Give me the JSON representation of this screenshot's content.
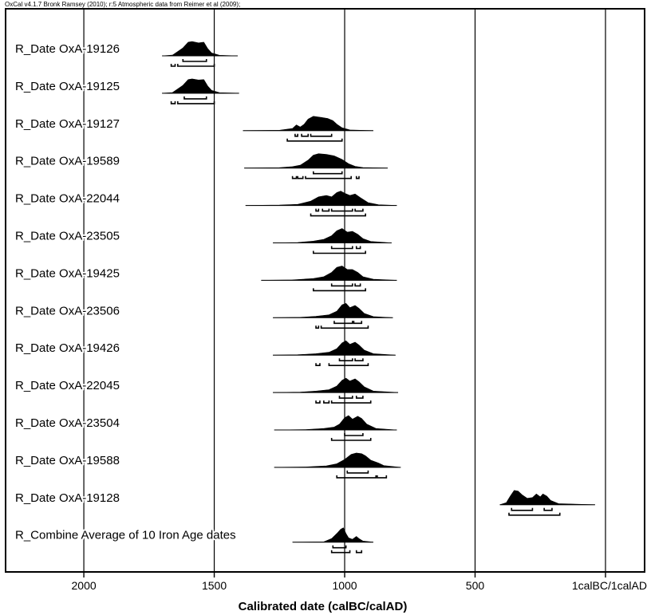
{
  "header": "OxCal v4.1.7 Bronk Ramsey (2010); r:5 Atmospheric data from Reimer et al (2009);",
  "chart_data": {
    "type": "scatter",
    "title": "",
    "xlabel": "Calibrated date (calBC/calAD)",
    "ylabel": "",
    "xlim": [
      2300,
      -150
    ],
    "grid": true,
    "tick_values": [
      2000,
      1500,
      1000,
      500,
      0
    ],
    "tick_labels": [
      "2000",
      "1500",
      "1000",
      "500",
      "1calBC/1calAD"
    ],
    "series": [
      {
        "name": "R_Date OxA-19126",
        "x_range": [
          1700,
          1410
        ],
        "mode": 1590,
        "shape": [
          [
            1700,
            0
          ],
          [
            1660,
            0.05
          ],
          [
            1640,
            0.3
          ],
          [
            1620,
            0.55
          ],
          [
            1600,
            0.95
          ],
          [
            1585,
            1
          ],
          [
            1560,
            0.9
          ],
          [
            1540,
            0.95
          ],
          [
            1525,
            0.5
          ],
          [
            1510,
            0.2
          ],
          [
            1480,
            0.04
          ],
          [
            1410,
            0
          ]
        ],
        "ranges68": [
          [
            1620,
            1530
          ]
        ],
        "ranges95": [
          [
            1665,
            1650
          ],
          [
            1640,
            1500
          ]
        ]
      },
      {
        "name": "R_Date OxA-19125",
        "x_range": [
          1700,
          1405
        ],
        "mode": 1590,
        "shape": [
          [
            1700,
            0
          ],
          [
            1660,
            0.05
          ],
          [
            1640,
            0.3
          ],
          [
            1620,
            0.55
          ],
          [
            1600,
            0.95
          ],
          [
            1585,
            1
          ],
          [
            1560,
            0.92
          ],
          [
            1540,
            0.95
          ],
          [
            1525,
            0.5
          ],
          [
            1510,
            0.2
          ],
          [
            1480,
            0.04
          ],
          [
            1405,
            0
          ]
        ],
        "ranges68": [
          [
            1615,
            1530
          ]
        ],
        "ranges95": [
          [
            1665,
            1650
          ],
          [
            1640,
            1500
          ]
        ]
      },
      {
        "name": "R_Date OxA-19127",
        "x_range": [
          1390,
          890
        ],
        "mode": 1110,
        "shape": [
          [
            1390,
            0
          ],
          [
            1250,
            0.03
          ],
          [
            1200,
            0.15
          ],
          [
            1185,
            0.4
          ],
          [
            1170,
            0.25
          ],
          [
            1155,
            0.45
          ],
          [
            1140,
            0.8
          ],
          [
            1120,
            1
          ],
          [
            1090,
            0.92
          ],
          [
            1065,
            0.85
          ],
          [
            1045,
            0.7
          ],
          [
            1030,
            0.45
          ],
          [
            1010,
            0.2
          ],
          [
            980,
            0.05
          ],
          [
            890,
            0
          ]
        ],
        "ranges68": [
          [
            1190,
            1180
          ],
          [
            1165,
            1140
          ],
          [
            1130,
            1050
          ]
        ],
        "ranges95": [
          [
            1220,
            1010
          ]
        ]
      },
      {
        "name": "R_Date OxA-19589",
        "x_range": [
          1385,
          835
        ],
        "mode": 1100,
        "shape": [
          [
            1385,
            0
          ],
          [
            1250,
            0.03
          ],
          [
            1200,
            0.1
          ],
          [
            1170,
            0.2
          ],
          [
            1140,
            0.55
          ],
          [
            1120,
            0.9
          ],
          [
            1100,
            1
          ],
          [
            1070,
            0.95
          ],
          [
            1040,
            0.85
          ],
          [
            1010,
            0.6
          ],
          [
            985,
            0.3
          ],
          [
            960,
            0.12
          ],
          [
            930,
            0.04
          ],
          [
            835,
            0
          ]
        ],
        "ranges68": [
          [
            1120,
            1010
          ]
        ],
        "ranges95": [
          [
            1200,
            1185
          ],
          [
            1180,
            1160
          ],
          [
            1150,
            975
          ],
          [
            955,
            945
          ]
        ]
      },
      {
        "name": "R_Date OxA-22044",
        "x_range": [
          1380,
          800
        ],
        "mode": 1020,
        "shape": [
          [
            1380,
            0
          ],
          [
            1250,
            0.03
          ],
          [
            1180,
            0.08
          ],
          [
            1130,
            0.3
          ],
          [
            1100,
            0.6
          ],
          [
            1070,
            0.7
          ],
          [
            1050,
            0.6
          ],
          [
            1030,
            0.9
          ],
          [
            1015,
            1
          ],
          [
            1000,
            0.85
          ],
          [
            980,
            0.7
          ],
          [
            960,
            0.8
          ],
          [
            940,
            0.55
          ],
          [
            910,
            0.2
          ],
          [
            870,
            0.05
          ],
          [
            800,
            0
          ]
        ],
        "ranges68": [
          [
            1110,
            1100
          ],
          [
            1085,
            1060
          ],
          [
            1050,
            970
          ],
          [
            960,
            930
          ]
        ],
        "ranges95": [
          [
            1130,
            920
          ]
        ]
      },
      {
        "name": "R_Date OxA-23505",
        "x_range": [
          1275,
          820
        ],
        "mode": 1010,
        "shape": [
          [
            1275,
            0
          ],
          [
            1180,
            0.03
          ],
          [
            1120,
            0.12
          ],
          [
            1080,
            0.25
          ],
          [
            1050,
            0.5
          ],
          [
            1030,
            0.85
          ],
          [
            1010,
            1
          ],
          [
            990,
            0.75
          ],
          [
            970,
            0.8
          ],
          [
            950,
            0.6
          ],
          [
            930,
            0.3
          ],
          [
            900,
            0.1
          ],
          [
            820,
            0
          ]
        ],
        "ranges68": [
          [
            1050,
            970
          ],
          [
            955,
            940
          ]
        ],
        "ranges95": [
          [
            1120,
            920
          ]
        ]
      },
      {
        "name": "R_Date OxA-19425",
        "x_range": [
          1320,
          800
        ],
        "mode": 1015,
        "shape": [
          [
            1320,
            0
          ],
          [
            1200,
            0.03
          ],
          [
            1120,
            0.12
          ],
          [
            1080,
            0.25
          ],
          [
            1050,
            0.55
          ],
          [
            1030,
            0.9
          ],
          [
            1010,
            1
          ],
          [
            990,
            0.75
          ],
          [
            970,
            0.75
          ],
          [
            950,
            0.55
          ],
          [
            930,
            0.25
          ],
          [
            890,
            0.07
          ],
          [
            800,
            0
          ]
        ],
        "ranges68": [
          [
            1050,
            970
          ],
          [
            960,
            940
          ]
        ],
        "ranges95": [
          [
            1120,
            920
          ]
        ]
      },
      {
        "name": "R_Date OxA-23506",
        "x_range": [
          1275,
          815
        ],
        "mode": 990,
        "shape": [
          [
            1275,
            0
          ],
          [
            1170,
            0.03
          ],
          [
            1110,
            0.1
          ],
          [
            1060,
            0.2
          ],
          [
            1030,
            0.45
          ],
          [
            1010,
            0.9
          ],
          [
            995,
            1
          ],
          [
            980,
            0.7
          ],
          [
            960,
            0.85
          ],
          [
            945,
            0.65
          ],
          [
            925,
            0.3
          ],
          [
            890,
            0.08
          ],
          [
            815,
            0
          ]
        ],
        "ranges68": [
          [
            1040,
            970
          ],
          [
            965,
            935
          ]
        ],
        "ranges95": [
          [
            1110,
            1100
          ],
          [
            1090,
            910
          ]
        ]
      },
      {
        "name": "R_Date OxA-19426",
        "x_range": [
          1275,
          805
        ],
        "mode": 990,
        "shape": [
          [
            1275,
            0
          ],
          [
            1180,
            0.03
          ],
          [
            1110,
            0.1
          ],
          [
            1060,
            0.2
          ],
          [
            1030,
            0.45
          ],
          [
            1010,
            0.85
          ],
          [
            995,
            1
          ],
          [
            980,
            0.75
          ],
          [
            960,
            0.9
          ],
          [
            945,
            0.7
          ],
          [
            925,
            0.35
          ],
          [
            890,
            0.1
          ],
          [
            805,
            0
          ]
        ],
        "ranges68": [
          [
            1020,
            970
          ],
          [
            960,
            930
          ]
        ],
        "ranges95": [
          [
            1110,
            1095
          ],
          [
            1060,
            910
          ]
        ]
      },
      {
        "name": "R_Date OxA-22045",
        "x_range": [
          1275,
          795
        ],
        "mode": 990,
        "shape": [
          [
            1275,
            0
          ],
          [
            1170,
            0.03
          ],
          [
            1110,
            0.1
          ],
          [
            1060,
            0.2
          ],
          [
            1030,
            0.45
          ],
          [
            1010,
            0.85
          ],
          [
            995,
            1
          ],
          [
            980,
            0.8
          ],
          [
            960,
            0.95
          ],
          [
            945,
            0.75
          ],
          [
            925,
            0.4
          ],
          [
            890,
            0.1
          ],
          [
            795,
            0
          ]
        ],
        "ranges68": [
          [
            1020,
            970
          ],
          [
            955,
            930
          ]
        ],
        "ranges95": [
          [
            1110,
            1095
          ],
          [
            1080,
            1060
          ],
          [
            1050,
            900
          ]
        ]
      },
      {
        "name": "R_Date OxA-23504",
        "x_range": [
          1270,
          800
        ],
        "mode": 975,
        "shape": [
          [
            1270,
            0
          ],
          [
            1150,
            0.03
          ],
          [
            1080,
            0.1
          ],
          [
            1040,
            0.2
          ],
          [
            1020,
            0.4
          ],
          [
            1000,
            0.85
          ],
          [
            985,
            1
          ],
          [
            970,
            0.75
          ],
          [
            950,
            0.95
          ],
          [
            935,
            0.8
          ],
          [
            915,
            0.4
          ],
          [
            880,
            0.1
          ],
          [
            800,
            0
          ]
        ],
        "ranges68": [
          [
            1000,
            930
          ]
        ],
        "ranges95": [
          [
            1050,
            900
          ]
        ]
      },
      {
        "name": "R_Date OxA-19588",
        "x_range": [
          1270,
          785
        ],
        "mode": 950,
        "shape": [
          [
            1270,
            0
          ],
          [
            1150,
            0.03
          ],
          [
            1070,
            0.1
          ],
          [
            1030,
            0.25
          ],
          [
            1000,
            0.55
          ],
          [
            975,
            0.9
          ],
          [
            955,
            1
          ],
          [
            935,
            0.95
          ],
          [
            920,
            0.8
          ],
          [
            900,
            0.5
          ],
          [
            870,
            0.3
          ],
          [
            850,
            0.12
          ],
          [
            785,
            0
          ]
        ],
        "ranges68": [
          [
            990,
            910
          ]
        ],
        "ranges95": [
          [
            1030,
            880
          ],
          [
            875,
            840
          ]
        ]
      },
      {
        "name": "R_Date OxA-19128",
        "x_range": [
          405,
          40
        ],
        "mode": 350,
        "shape": [
          [
            405,
            0
          ],
          [
            380,
            0.15
          ],
          [
            365,
            0.6
          ],
          [
            350,
            1
          ],
          [
            335,
            0.95
          ],
          [
            320,
            0.7
          ],
          [
            300,
            0.45
          ],
          [
            280,
            0.5
          ],
          [
            265,
            0.75
          ],
          [
            250,
            0.55
          ],
          [
            240,
            0.75
          ],
          [
            225,
            0.6
          ],
          [
            210,
            0.3
          ],
          [
            180,
            0.08
          ],
          [
            40,
            0
          ]
        ],
        "ranges68": [
          [
            360,
            280
          ],
          [
            235,
            205
          ]
        ],
        "ranges95": [
          [
            370,
            175
          ]
        ]
      },
      {
        "name": "R_Combine Average of 10 Iron Age dates",
        "x_range": [
          1200,
          890
        ],
        "mode": 1000,
        "shape": [
          [
            1200,
            0
          ],
          [
            1080,
            0.02
          ],
          [
            1050,
            0.25
          ],
          [
            1030,
            0.6
          ],
          [
            1015,
            0.9
          ],
          [
            1005,
            1
          ],
          [
            995,
            0.6
          ],
          [
            985,
            0.3
          ],
          [
            970,
            0.2
          ],
          [
            955,
            0.4
          ],
          [
            945,
            0.25
          ],
          [
            930,
            0.08
          ],
          [
            890,
            0
          ]
        ],
        "ranges68": [
          [
            1045,
            995
          ]
        ],
        "ranges95": [
          [
            1050,
            980
          ],
          [
            955,
            935
          ]
        ]
      }
    ]
  }
}
